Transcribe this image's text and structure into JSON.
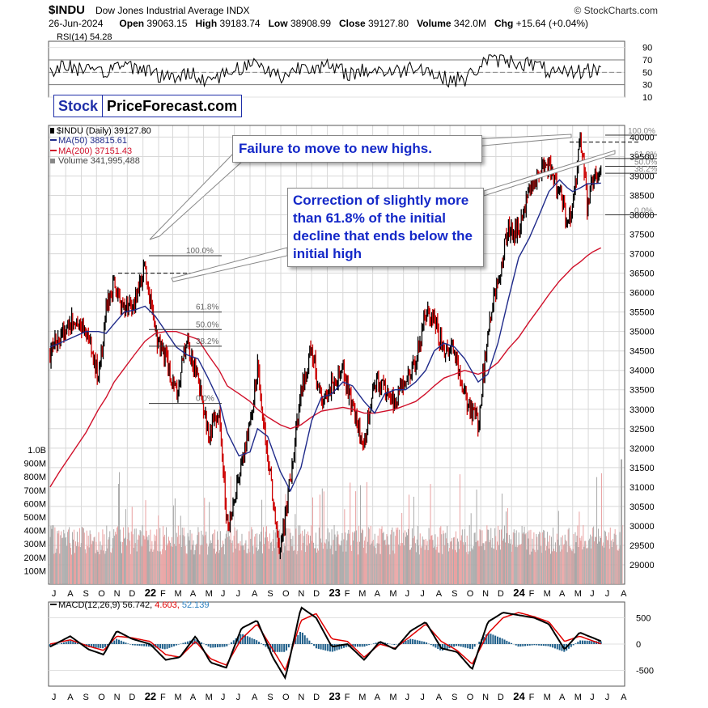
{
  "header": {
    "symbol": "$INDU",
    "name": "Dow Jones Industrial Average INDX",
    "brand": "© StockCharts.com",
    "date": "26-Jun-2024",
    "open_label": "Open",
    "open": "39063.15",
    "high_label": "High",
    "high": "39183.74",
    "low_label": "Low",
    "low": "38908.99",
    "close_label": "Close",
    "close": "39127.80",
    "volume_label": "Volume",
    "volume": "342.0M",
    "chg_label": "Chg",
    "chg": "+15.64 (+0.04%)"
  },
  "logo": {
    "part1": "Stock",
    "part2": "PriceForecast.com"
  },
  "annotations": {
    "callout1": "Failure to move to new highs.",
    "callout2": "Correction of slightly more than 61.8% of the initial decline that ends below the initial high"
  },
  "colors": {
    "price": "#000000",
    "down_bar": "#cc0000",
    "ma50": "#1f2a8a",
    "ma200": "#d0102a",
    "volume_up": "#a9a9a9",
    "volume_down": "#e8a0a0",
    "macd": "#000000",
    "signal": "#e00000",
    "histogram": "#1f5f8a"
  },
  "chart_data": [
    {
      "type": "line",
      "panel": "rsi",
      "legend": "RSI(14) 54.28",
      "ylim": [
        10,
        100
      ],
      "yticks": [
        90,
        70,
        50,
        30,
        10
      ],
      "overbought": 70,
      "oversold": 30,
      "x": [
        "2021-07-01",
        "2021-08-15",
        "2021-10-01",
        "2021-11-15",
        "2022-01-01",
        "2022-02-15",
        "2022-04-01",
        "2022-05-15",
        "2022-07-01",
        "2022-08-15",
        "2022-10-01",
        "2022-11-15",
        "2023-01-01",
        "2023-02-15",
        "2023-04-01",
        "2023-05-15",
        "2023-07-01",
        "2023-08-15",
        "2023-10-01",
        "2023-11-15",
        "2024-01-01",
        "2024-02-15",
        "2024-04-01",
        "2024-05-15",
        "2024-06-26"
      ],
      "values": [
        55,
        60,
        45,
        62,
        58,
        40,
        48,
        38,
        55,
        65,
        42,
        62,
        58,
        48,
        55,
        50,
        62,
        40,
        38,
        72,
        68,
        62,
        45,
        52,
        54.28
      ]
    },
    {
      "type": "line",
      "panel": "price",
      "legend": {
        "price": "$INDU (Daily) 39127.80",
        "ma50": "MA(50) 38815.61",
        "ma200": "MA(200) 37151.43",
        "volume": "Volume 341,995,488"
      },
      "ylim": [
        28500,
        40300
      ],
      "yticks": [
        40000,
        39500,
        39000,
        38500,
        38000,
        37500,
        37000,
        36500,
        36000,
        35500,
        35000,
        34500,
        34000,
        33500,
        33000,
        32500,
        32000,
        31500,
        31000,
        30500,
        30000,
        29500,
        29000
      ],
      "volume_ticks": [
        "1.0B",
        "900M",
        "800M",
        "700M",
        "600M",
        "500M",
        "400M",
        "300M",
        "200M",
        "100M"
      ],
      "x_tick_labels": [
        "J",
        "A",
        "S",
        "O",
        "N",
        "D",
        "22",
        "F",
        "M",
        "A",
        "M",
        "J",
        "J",
        "A",
        "S",
        "O",
        "N",
        "D",
        "23",
        "F",
        "M",
        "A",
        "M",
        "J",
        "J",
        "A",
        "S",
        "O",
        "N",
        "D",
        "24",
        "F",
        "M",
        "A",
        "M",
        "J",
        "J",
        "A"
      ],
      "x": [
        "2021-07-01",
        "2021-07-20",
        "2021-08-15",
        "2021-09-10",
        "2021-10-05",
        "2021-10-20",
        "2021-11-05",
        "2021-11-25",
        "2021-12-15",
        "2022-01-05",
        "2022-01-25",
        "2022-02-15",
        "2022-03-08",
        "2022-03-29",
        "2022-04-20",
        "2022-05-10",
        "2022-06-01",
        "2022-06-17",
        "2022-07-10",
        "2022-08-01",
        "2022-08-16",
        "2022-09-05",
        "2022-09-30",
        "2022-10-20",
        "2022-11-10",
        "2022-12-01",
        "2022-12-20",
        "2023-01-10",
        "2023-02-01",
        "2023-02-20",
        "2023-03-15",
        "2023-04-05",
        "2023-04-25",
        "2023-05-15",
        "2023-06-05",
        "2023-06-25",
        "2023-07-15",
        "2023-08-01",
        "2023-08-20",
        "2023-09-10",
        "2023-09-30",
        "2023-10-27",
        "2023-11-15",
        "2023-12-05",
        "2023-12-25",
        "2024-01-15",
        "2024-02-05",
        "2024-02-25",
        "2024-03-15",
        "2024-04-05",
        "2024-04-20",
        "2024-05-01",
        "2024-05-17",
        "2024-05-30",
        "2024-06-10",
        "2024-06-26"
      ],
      "close": [
        34400,
        34900,
        35300,
        35100,
        33900,
        35500,
        36200,
        35600,
        35800,
        36700,
        34900,
        34300,
        33400,
        34800,
        33800,
        32300,
        32900,
        30000,
        31200,
        32700,
        34100,
        31800,
        29300,
        31200,
        33400,
        34600,
        33200,
        33600,
        34000,
        33000,
        32100,
        33800,
        33500,
        33100,
        33800,
        34200,
        35500,
        35300,
        34500,
        34600,
        33300,
        32600,
        35000,
        36300,
        37600,
        37600,
        38600,
        39100,
        39300,
        38600,
        37800,
        38200,
        40000,
        38200,
        38900,
        39127.8
      ],
      "ma50": [
        34600,
        34700,
        34850,
        35000,
        35000,
        34950,
        35200,
        35500,
        35550,
        35650,
        35400,
        35000,
        34600,
        34400,
        34300,
        33800,
        33200,
        32400,
        31800,
        31900,
        32500,
        32300,
        31400,
        30900,
        31500,
        32700,
        33300,
        33400,
        33700,
        33600,
        33200,
        32900,
        33400,
        33500,
        33500,
        33700,
        34000,
        34500,
        34700,
        34600,
        34300,
        33700,
        33900,
        34700,
        35800,
        36900,
        37400,
        38000,
        38600,
        38900,
        38700,
        38600,
        38700,
        38800,
        38800,
        38815.61
      ],
      "ma200": [
        31000,
        31400,
        31900,
        32400,
        33000,
        33300,
        33700,
        34050,
        34400,
        34750,
        34950,
        35000,
        35000,
        34900,
        34800,
        34400,
        34000,
        33600,
        33400,
        33200,
        33000,
        32800,
        32600,
        32500,
        32600,
        32800,
        32950,
        33000,
        33050,
        33000,
        32900,
        32900,
        32950,
        33000,
        33100,
        33200,
        33400,
        33600,
        33800,
        33900,
        34000,
        33900,
        34000,
        34200,
        34550,
        34850,
        35250,
        35600,
        35950,
        36300,
        36500,
        36650,
        36800,
        36950,
        37050,
        37151.43
      ],
      "fibonacci_1": {
        "labels": [
          "100.0%",
          "61.8%",
          "50.0%",
          "38.2%",
          "0.0%"
        ],
        "levels": [
          36950,
          35500,
          35050,
          34620,
          33150
        ]
      },
      "fibonacci_2": {
        "labels": [
          "100.0%",
          "61.8%",
          "50.0%",
          "38.2%",
          "0.0%"
        ],
        "levels": [
          40050,
          39450,
          39250,
          39070,
          38000
        ]
      }
    },
    {
      "type": "bar",
      "panel": "volume",
      "legend": "Volume 341,995,488",
      "ylim": [
        0,
        1000000000
      ],
      "last_value": 341995488
    },
    {
      "type": "line",
      "panel": "macd",
      "legend": {
        "label": "MACD(12,26,9)",
        "macd": "56.742",
        "signal": "4.603",
        "hist": "52.139"
      },
      "ylim": [
        -800,
        800
      ],
      "yticks": [
        500,
        0,
        -500
      ],
      "x_tick_labels": [
        "J",
        "A",
        "S",
        "O",
        "N",
        "D",
        "22",
        "F",
        "M",
        "A",
        "M",
        "J",
        "J",
        "A",
        "S",
        "O",
        "N",
        "D",
        "23",
        "F",
        "M",
        "A",
        "M",
        "J",
        "J",
        "A",
        "S",
        "O",
        "N",
        "D",
        "24",
        "F",
        "M",
        "A",
        "M",
        "J",
        "J",
        "A"
      ],
      "x": [
        "2021-07-01",
        "2021-08-10",
        "2021-09-15",
        "2021-10-15",
        "2021-11-10",
        "2021-12-10",
        "2022-01-15",
        "2022-02-15",
        "2022-03-15",
        "2022-04-15",
        "2022-05-15",
        "2022-06-15",
        "2022-07-15",
        "2022-08-15",
        "2022-09-15",
        "2022-10-10",
        "2022-11-10",
        "2022-12-10",
        "2023-01-10",
        "2023-02-10",
        "2023-03-15",
        "2023-04-15",
        "2023-05-15",
        "2023-06-15",
        "2023-07-15",
        "2023-08-15",
        "2023-09-15",
        "2023-10-15",
        "2023-11-15",
        "2023-12-15",
        "2024-01-15",
        "2024-02-15",
        "2024-03-15",
        "2024-04-15",
        "2024-05-15",
        "2024-06-26"
      ],
      "macd": [
        -50,
        150,
        -100,
        -200,
        250,
        100,
        0,
        -300,
        -250,
        150,
        -350,
        -450,
        300,
        450,
        -250,
        -650,
        700,
        500,
        -50,
        0,
        -300,
        50,
        -100,
        250,
        420,
        -80,
        -150,
        -480,
        420,
        600,
        550,
        500,
        380,
        -100,
        220,
        56.742
      ],
      "signal": [
        0,
        80,
        -40,
        -120,
        150,
        120,
        50,
        -200,
        -250,
        50,
        -280,
        -400,
        100,
        380,
        -100,
        -500,
        450,
        580,
        100,
        50,
        -250,
        0,
        -80,
        150,
        380,
        50,
        -120,
        -380,
        200,
        500,
        600,
        520,
        420,
        50,
        150,
        4.603
      ],
      "histogram": [
        -50,
        70,
        -60,
        -80,
        100,
        -20,
        -50,
        -100,
        0,
        100,
        -70,
        -50,
        200,
        70,
        -150,
        -150,
        250,
        -80,
        -150,
        -50,
        -50,
        50,
        -20,
        100,
        40,
        -130,
        -30,
        -100,
        220,
        100,
        -50,
        -20,
        -40,
        -150,
        70,
        52.139
      ]
    }
  ]
}
